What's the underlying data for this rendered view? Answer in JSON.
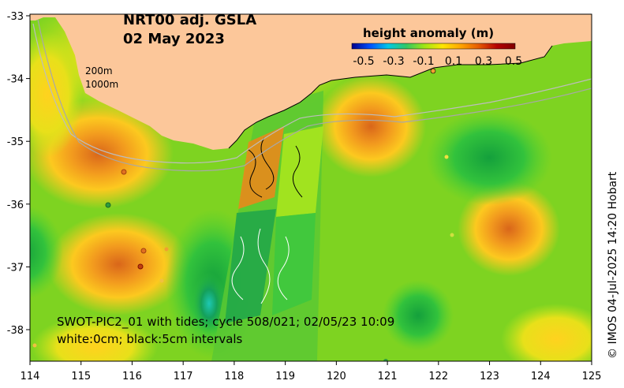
{
  "title_line1": "NRT00 adj. GSLA",
  "title_line2": "02 May 2023",
  "colorbar": {
    "title": "height anomaly (m)",
    "ticks": [
      "-0.5",
      "-0.3",
      "-0.1",
      "0.1",
      "0.3",
      "0.5"
    ],
    "colors": [
      "#00008b",
      "#0050ff",
      "#00c8e6",
      "#32c864",
      "#a0e614",
      "#ffe600",
      "#ffa500",
      "#e65a00",
      "#b40000",
      "#800000"
    ]
  },
  "depth_labels": {
    "d200": "200m",
    "d1000": "1000m"
  },
  "swot_line1": "SWOT-PIC2_01 with tides; cycle 508/021; 02/05/23 10:09",
  "swot_line2": "white:0cm; black:5cm intervals",
  "credit": "© IMOS 04-Jul-2025 14:20 Hobart",
  "x_axis": {
    "ticks": [
      "114",
      "115",
      "116",
      "117",
      "118",
      "119",
      "120",
      "121",
      "122",
      "123",
      "124",
      "125"
    ]
  },
  "y_axis": {
    "ticks": [
      "-33",
      "-34",
      "-35",
      "-36",
      "-37",
      "-38"
    ]
  },
  "colors": {
    "land": "#fcc79a",
    "ocean_base": "#7ed321"
  }
}
